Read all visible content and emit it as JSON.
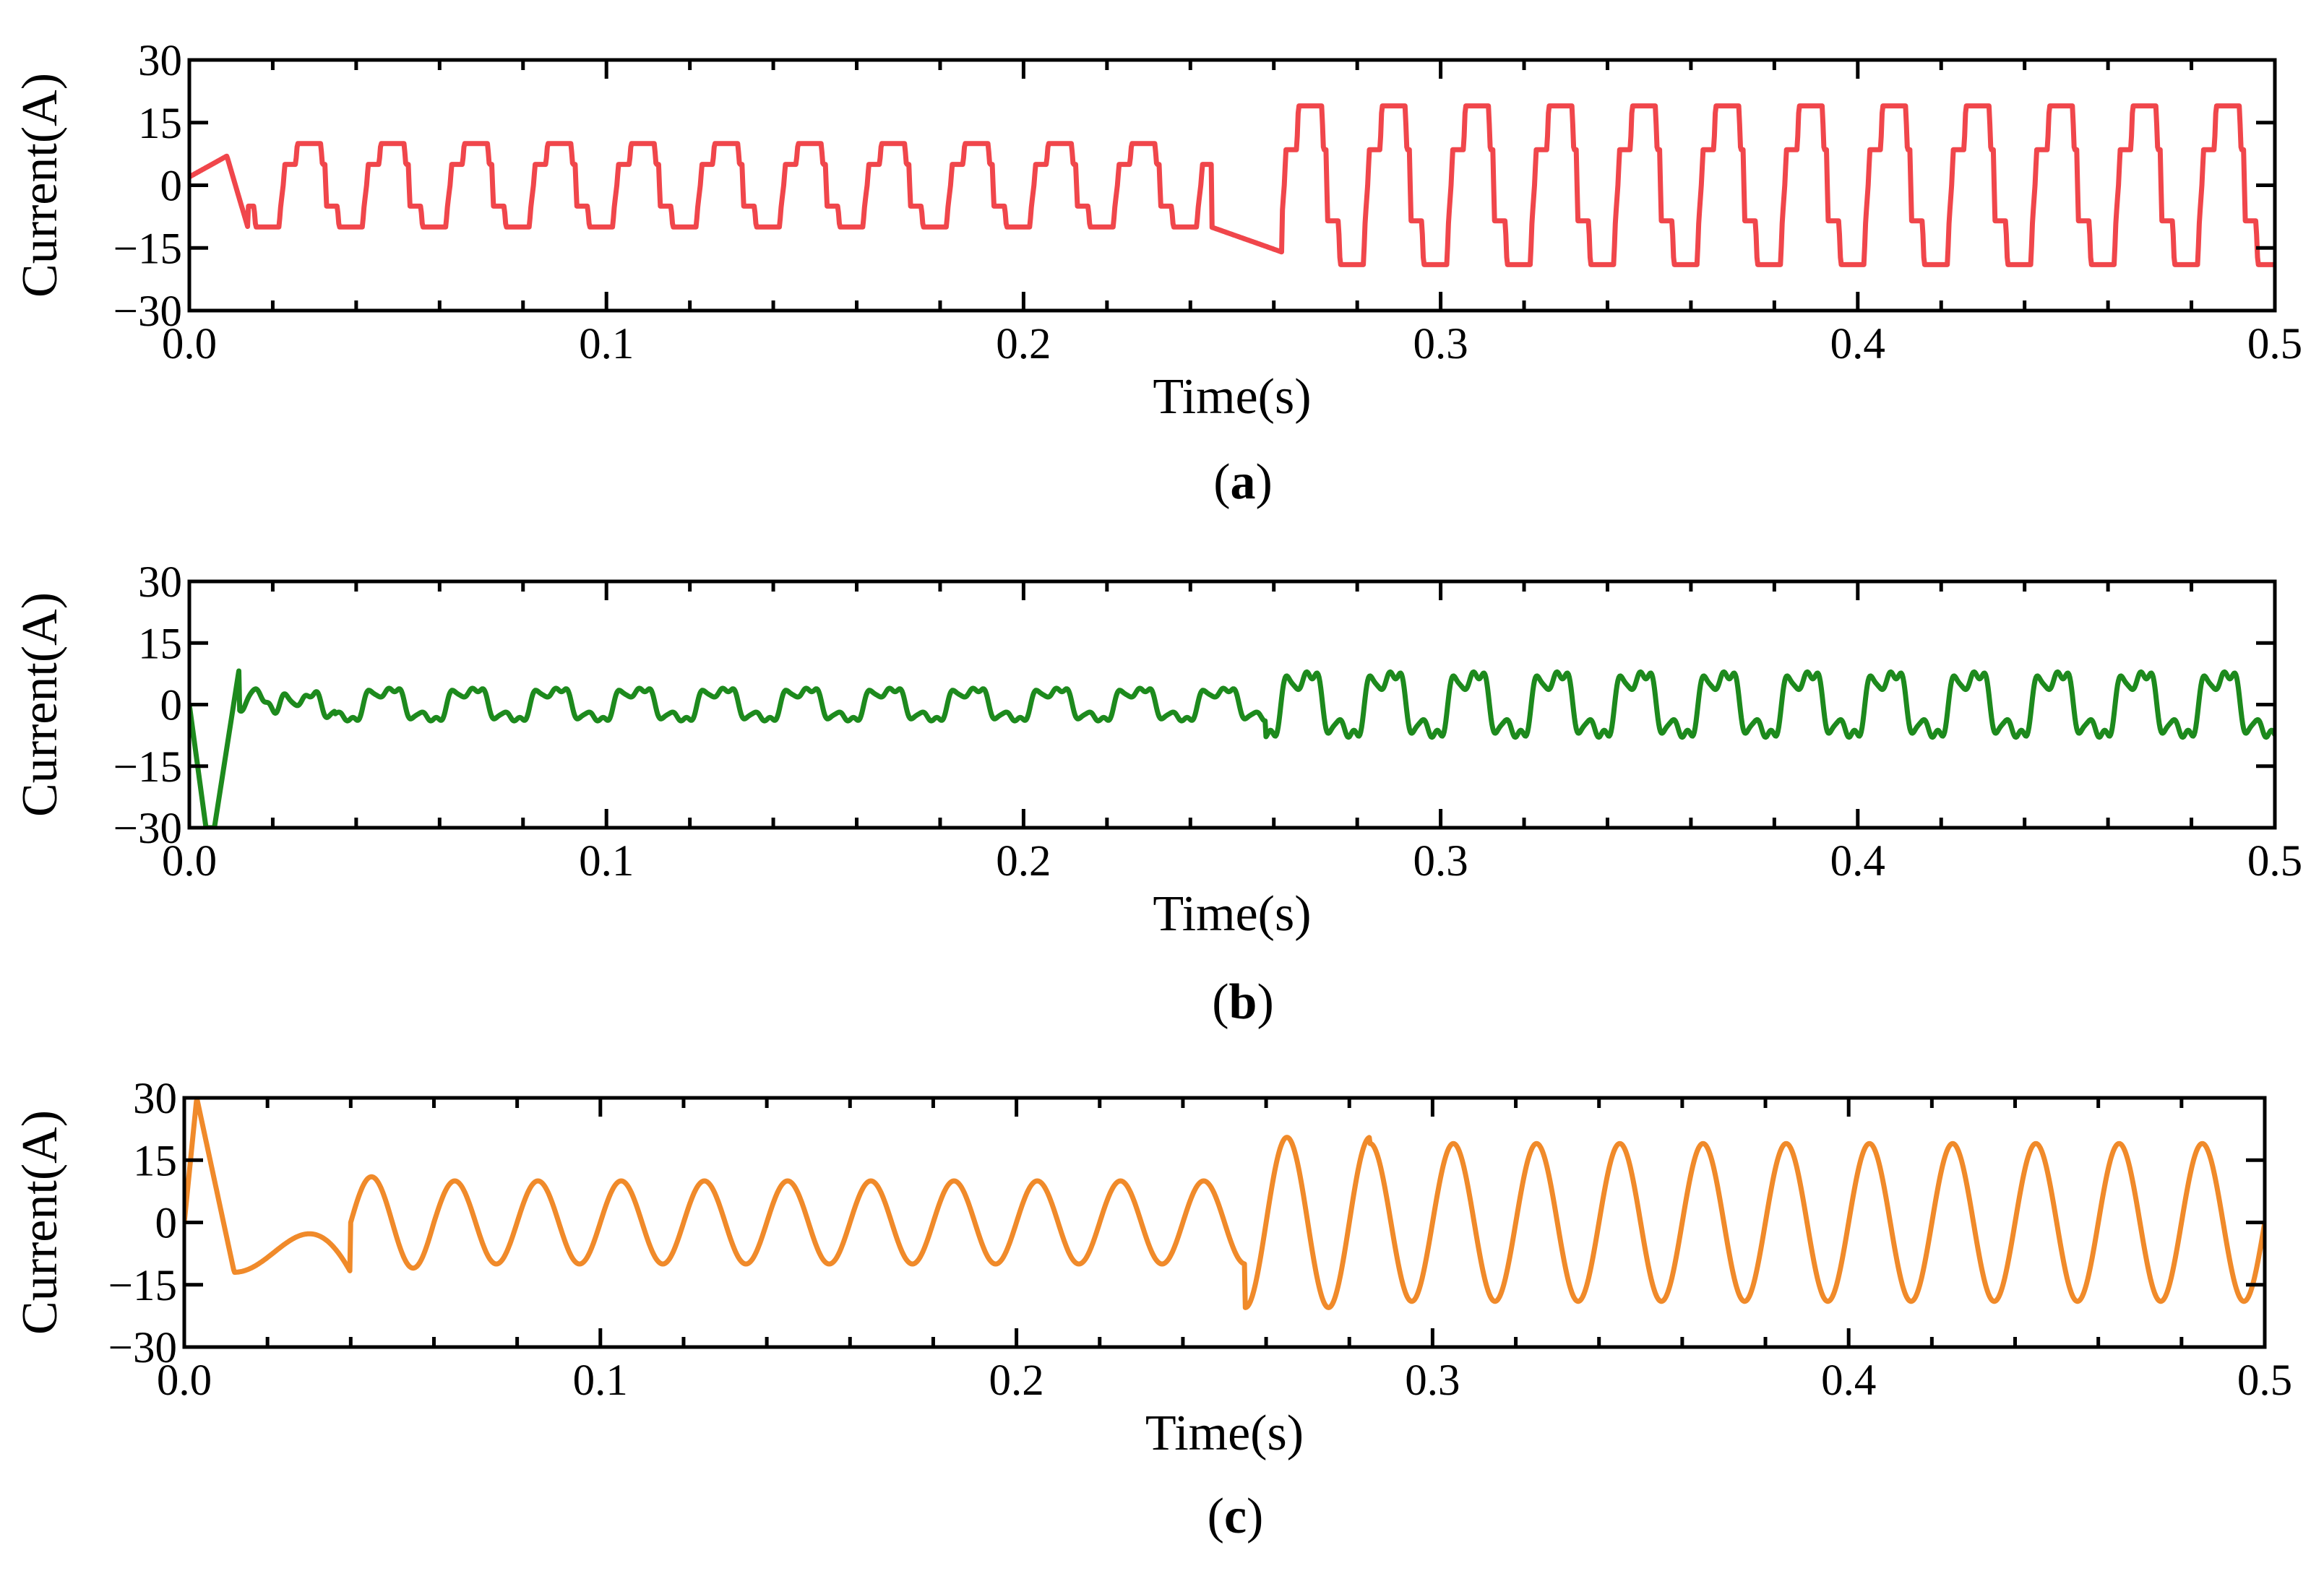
{
  "chart_data": [
    {
      "type": "line",
      "caption_label": "a",
      "title": "",
      "xlabel": "Time(s)",
      "ylabel": "Current(A)",
      "xlim": [
        0.0,
        0.5
      ],
      "ylim": [
        -30,
        30
      ],
      "xticks": [
        0.0,
        0.1,
        0.2,
        0.3,
        0.4,
        0.5
      ],
      "xtick_labels": [
        "0.0",
        "0.1",
        "0.2",
        "0.3",
        "0.4",
        "0.5"
      ],
      "yticks": [
        30,
        15,
        0,
        -15,
        -30
      ],
      "ytick_labels": [
        "30",
        "15",
        "0",
        "−15",
        "−30"
      ],
      "grid": false,
      "fundamental_hz": 50,
      "step_time_s": 0.25,
      "series": [
        {
          "name": "Current",
          "color": "#f0464b",
          "waveform": "six-step",
          "description_values": {
            "amplitude_before_step_A": 10,
            "amplitude_after_step_A": 19,
            "step_level_before_A": 5,
            "step_level_after_A": 8.5
          }
        }
      ]
    },
    {
      "type": "line",
      "caption_label": "b",
      "title": "",
      "xlabel": "Time(s)",
      "ylabel": "Current(A)",
      "xlim": [
        0.0,
        0.5
      ],
      "ylim": [
        -30,
        30
      ],
      "xticks": [
        0.0,
        0.1,
        0.2,
        0.3,
        0.4,
        0.5
      ],
      "xtick_labels": [
        "0.0",
        "0.1",
        "0.2",
        "0.3",
        "0.4",
        "0.5"
      ],
      "yticks": [
        30,
        15,
        0,
        -15,
        -30
      ],
      "ytick_labels": [
        "30",
        "15",
        "0",
        "−15",
        "−30"
      ],
      "grid": false,
      "fundamental_hz": 50,
      "step_time_s": 0.25,
      "series": [
        {
          "name": "Current",
          "color": "#1d8a1d",
          "waveform": "harmonic-rich",
          "description_values": {
            "initial_min_A": -30,
            "initial_peak_A": 9,
            "peak_before_step_A": 5,
            "trough_before_step_A": -6,
            "peak_after_step_A": 11,
            "trough_after_step_A": -11
          }
        }
      ]
    },
    {
      "type": "line",
      "caption_label": "c",
      "title": "",
      "xlabel": "Time(s)",
      "ylabel": "Current(A)",
      "xlim": [
        0.0,
        0.5
      ],
      "ylim": [
        -30,
        30
      ],
      "xticks": [
        0.0,
        0.1,
        0.2,
        0.3,
        0.4,
        0.5
      ],
      "xtick_labels": [
        "0.0",
        "0.1",
        "0.2",
        "0.3",
        "0.4",
        "0.5"
      ],
      "yticks": [
        30,
        15,
        0,
        -15,
        -30
      ],
      "ytick_labels": [
        "30",
        "15",
        "0",
        "−15",
        "−30"
      ],
      "grid": false,
      "fundamental_hz": 50,
      "step_time_s": 0.25,
      "series": [
        {
          "name": "Current",
          "color": "#f08a2a",
          "waveform": "sinusoid",
          "description_values": {
            "initial_peak_A": 30,
            "initial_trough_A": -12,
            "amplitude_before_step_A": 10,
            "amplitude_after_step_A": 19,
            "post_step_trough_A": -21
          }
        }
      ]
    }
  ]
}
